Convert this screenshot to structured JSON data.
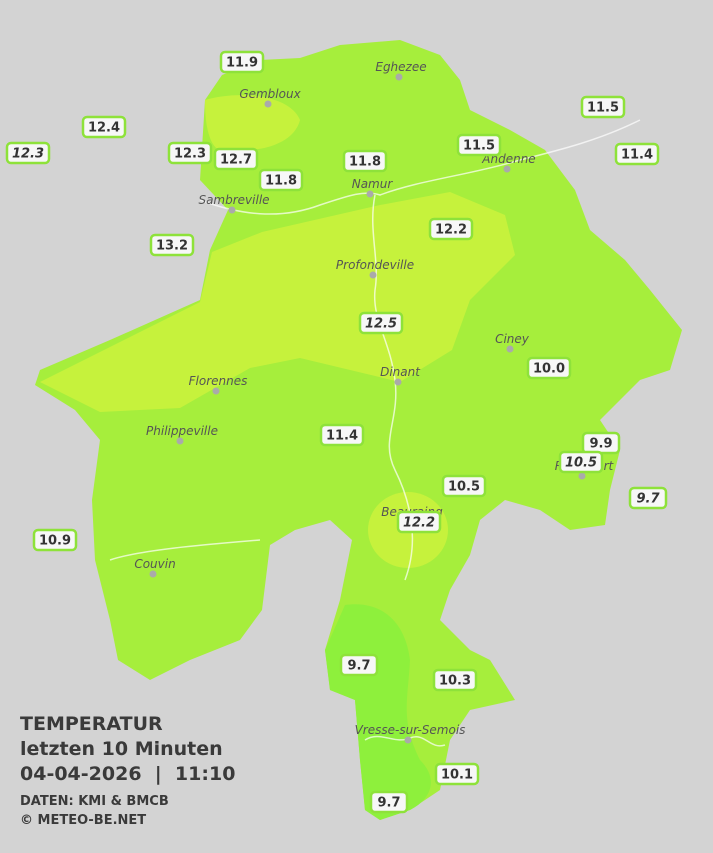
{
  "legend": {
    "title": "TEMPERATUR",
    "period": "letzten 10 Minuten",
    "datetime": "04-04-2026  |  11:10",
    "source": "DATEN: KMI & BMCB",
    "copyright": "© METEO-BE.NET"
  },
  "towns": [
    "Eghezee",
    "Gembloux",
    "Andenne",
    "Namur",
    "Sambreville",
    "Profondeville",
    "Ciney",
    "Dinant",
    "Florennes",
    "Philippeville",
    "Rochefort",
    "Beauraing",
    "Couvin",
    "Vresse-sur-Semois"
  ],
  "stations": [
    {
      "value": "11.9",
      "italic": false
    },
    {
      "value": "12.4",
      "italic": false
    },
    {
      "value": "12.3",
      "italic": true
    },
    {
      "value": "12.3",
      "italic": false
    },
    {
      "value": "12.7",
      "italic": false
    },
    {
      "value": "11.8",
      "italic": false
    },
    {
      "value": "11.8",
      "italic": false
    },
    {
      "value": "11.5",
      "italic": false
    },
    {
      "value": "11.5",
      "italic": false
    },
    {
      "value": "11.4",
      "italic": false
    },
    {
      "value": "13.2",
      "italic": false
    },
    {
      "value": "12.2",
      "italic": false
    },
    {
      "value": "12.5",
      "italic": true
    },
    {
      "value": "10.0",
      "italic": false
    },
    {
      "value": "11.4",
      "italic": false
    },
    {
      "value": "9.9",
      "italic": false
    },
    {
      "value": "10.5",
      "italic": true
    },
    {
      "value": "9.7",
      "italic": true
    },
    {
      "value": "10.5",
      "italic": false
    },
    {
      "value": "12.2",
      "italic": true
    },
    {
      "value": "10.9",
      "italic": false
    },
    {
      "value": "9.7",
      "italic": false
    },
    {
      "value": "10.3",
      "italic": false
    },
    {
      "value": "10.1",
      "italic": false
    },
    {
      "value": "9.7",
      "italic": false
    }
  ]
}
